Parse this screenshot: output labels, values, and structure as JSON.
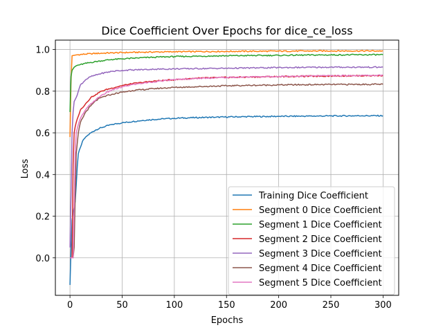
{
  "chart_data": {
    "type": "line",
    "title": "Dice Coefficient Over Epochs for dice_ce_loss",
    "xlabel": "Epochs",
    "ylabel": "Loss",
    "xlim": [
      -14,
      315
    ],
    "ylim": [
      -0.18,
      1.045
    ],
    "xticks": [
      0,
      50,
      100,
      150,
      200,
      250,
      300
    ],
    "yticks": [
      0.0,
      0.2,
      0.4,
      0.6,
      0.8,
      1.0
    ],
    "ytick_labels": [
      "0.0",
      "0.2",
      "0.4",
      "0.6",
      "0.8",
      "1.0"
    ],
    "grid": true,
    "legend_position": "lower-right",
    "series": [
      {
        "name": "Training Dice Coefficient",
        "color": "#1f77b4",
        "points": [
          [
            0,
            -0.13
          ],
          [
            1,
            0.05
          ],
          [
            2,
            0.18
          ],
          [
            3,
            0.22
          ],
          [
            4,
            0.24
          ],
          [
            5,
            0.27
          ],
          [
            6,
            0.35
          ],
          [
            7,
            0.44
          ],
          [
            8,
            0.5
          ],
          [
            10,
            0.53
          ],
          [
            12,
            0.56
          ],
          [
            15,
            0.58
          ],
          [
            20,
            0.6
          ],
          [
            25,
            0.615
          ],
          [
            30,
            0.625
          ],
          [
            40,
            0.64
          ],
          [
            50,
            0.648
          ],
          [
            60,
            0.654
          ],
          [
            70,
            0.66
          ],
          [
            80,
            0.664
          ],
          [
            90,
            0.667
          ],
          [
            100,
            0.67
          ],
          [
            120,
            0.673
          ],
          [
            140,
            0.675
          ],
          [
            160,
            0.677
          ],
          [
            180,
            0.678
          ],
          [
            200,
            0.679
          ],
          [
            220,
            0.68
          ],
          [
            250,
            0.681
          ],
          [
            280,
            0.682
          ],
          [
            300,
            0.682
          ]
        ]
      },
      {
        "name": "Segment 0 Dice Coefficient",
        "color": "#ff7f0e",
        "points": [
          [
            0,
            0.58
          ],
          [
            1,
            0.85
          ],
          [
            2,
            0.97
          ],
          [
            4,
            0.972
          ],
          [
            6,
            0.974
          ],
          [
            10,
            0.976
          ],
          [
            20,
            0.98
          ],
          [
            40,
            0.984
          ],
          [
            60,
            0.986
          ],
          [
            80,
            0.988
          ],
          [
            100,
            0.989
          ],
          [
            150,
            0.991
          ],
          [
            200,
            0.992
          ],
          [
            250,
            0.993
          ],
          [
            300,
            0.993
          ]
        ]
      },
      {
        "name": "Segment 1 Dice Coefficient",
        "color": "#2ca02c",
        "points": [
          [
            0,
            0.7
          ],
          [
            1,
            0.87
          ],
          [
            2,
            0.9
          ],
          [
            4,
            0.915
          ],
          [
            6,
            0.922
          ],
          [
            10,
            0.928
          ],
          [
            20,
            0.938
          ],
          [
            30,
            0.946
          ],
          [
            40,
            0.952
          ],
          [
            60,
            0.958
          ],
          [
            80,
            0.963
          ],
          [
            100,
            0.966
          ],
          [
            150,
            0.97
          ],
          [
            200,
            0.972
          ],
          [
            250,
            0.974
          ],
          [
            300,
            0.975
          ]
        ]
      },
      {
        "name": "Segment 2 Dice Coefficient",
        "color": "#d62728",
        "points": [
          [
            0,
            0.0
          ],
          [
            2,
            0.0
          ],
          [
            3,
            0.45
          ],
          [
            4,
            0.6
          ],
          [
            5,
            0.63
          ],
          [
            6,
            0.65
          ],
          [
            8,
            0.68
          ],
          [
            10,
            0.71
          ],
          [
            15,
            0.74
          ],
          [
            20,
            0.77
          ],
          [
            25,
            0.785
          ],
          [
            30,
            0.8
          ],
          [
            40,
            0.815
          ],
          [
            50,
            0.827
          ],
          [
            60,
            0.836
          ],
          [
            80,
            0.848
          ],
          [
            100,
            0.855
          ],
          [
            120,
            0.862
          ],
          [
            150,
            0.866
          ],
          [
            200,
            0.87
          ],
          [
            250,
            0.873
          ],
          [
            300,
            0.875
          ]
        ]
      },
      {
        "name": "Segment 3 Dice Coefficient",
        "color": "#9467bd",
        "points": [
          [
            0,
            0.05
          ],
          [
            1,
            0.3
          ],
          [
            2,
            0.6
          ],
          [
            3,
            0.7
          ],
          [
            4,
            0.75
          ],
          [
            6,
            0.77
          ],
          [
            8,
            0.8
          ],
          [
            10,
            0.83
          ],
          [
            15,
            0.855
          ],
          [
            20,
            0.87
          ],
          [
            30,
            0.885
          ],
          [
            40,
            0.895
          ],
          [
            50,
            0.9
          ],
          [
            60,
            0.902
          ],
          [
            80,
            0.905
          ],
          [
            100,
            0.907
          ],
          [
            150,
            0.91
          ],
          [
            200,
            0.913
          ],
          [
            250,
            0.915
          ],
          [
            300,
            0.915
          ]
        ]
      },
      {
        "name": "Segment 4 Dice Coefficient",
        "color": "#8c564b",
        "points": [
          [
            0,
            0.0
          ],
          [
            3,
            0.0
          ],
          [
            4,
            0.05
          ],
          [
            5,
            0.3
          ],
          [
            6,
            0.5
          ],
          [
            8,
            0.6
          ],
          [
            10,
            0.65
          ],
          [
            15,
            0.7
          ],
          [
            20,
            0.73
          ],
          [
            25,
            0.755
          ],
          [
            30,
            0.77
          ],
          [
            40,
            0.785
          ],
          [
            50,
            0.795
          ],
          [
            60,
            0.803
          ],
          [
            80,
            0.812
          ],
          [
            100,
            0.818
          ],
          [
            150,
            0.826
          ],
          [
            200,
            0.83
          ],
          [
            250,
            0.832
          ],
          [
            300,
            0.833
          ]
        ]
      },
      {
        "name": "Segment 5 Dice Coefficient",
        "color": "#e377c2",
        "points": [
          [
            0,
            0.0
          ],
          [
            3,
            0.0
          ],
          [
            4,
            0.25
          ],
          [
            5,
            0.5
          ],
          [
            6,
            0.6
          ],
          [
            8,
            0.64
          ],
          [
            10,
            0.67
          ],
          [
            15,
            0.71
          ],
          [
            20,
            0.74
          ],
          [
            25,
            0.76
          ],
          [
            30,
            0.78
          ],
          [
            40,
            0.805
          ],
          [
            50,
            0.82
          ],
          [
            60,
            0.832
          ],
          [
            80,
            0.845
          ],
          [
            100,
            0.855
          ],
          [
            120,
            0.861
          ],
          [
            150,
            0.866
          ],
          [
            200,
            0.871
          ],
          [
            250,
            0.874
          ],
          [
            300,
            0.876
          ]
        ]
      }
    ]
  }
}
